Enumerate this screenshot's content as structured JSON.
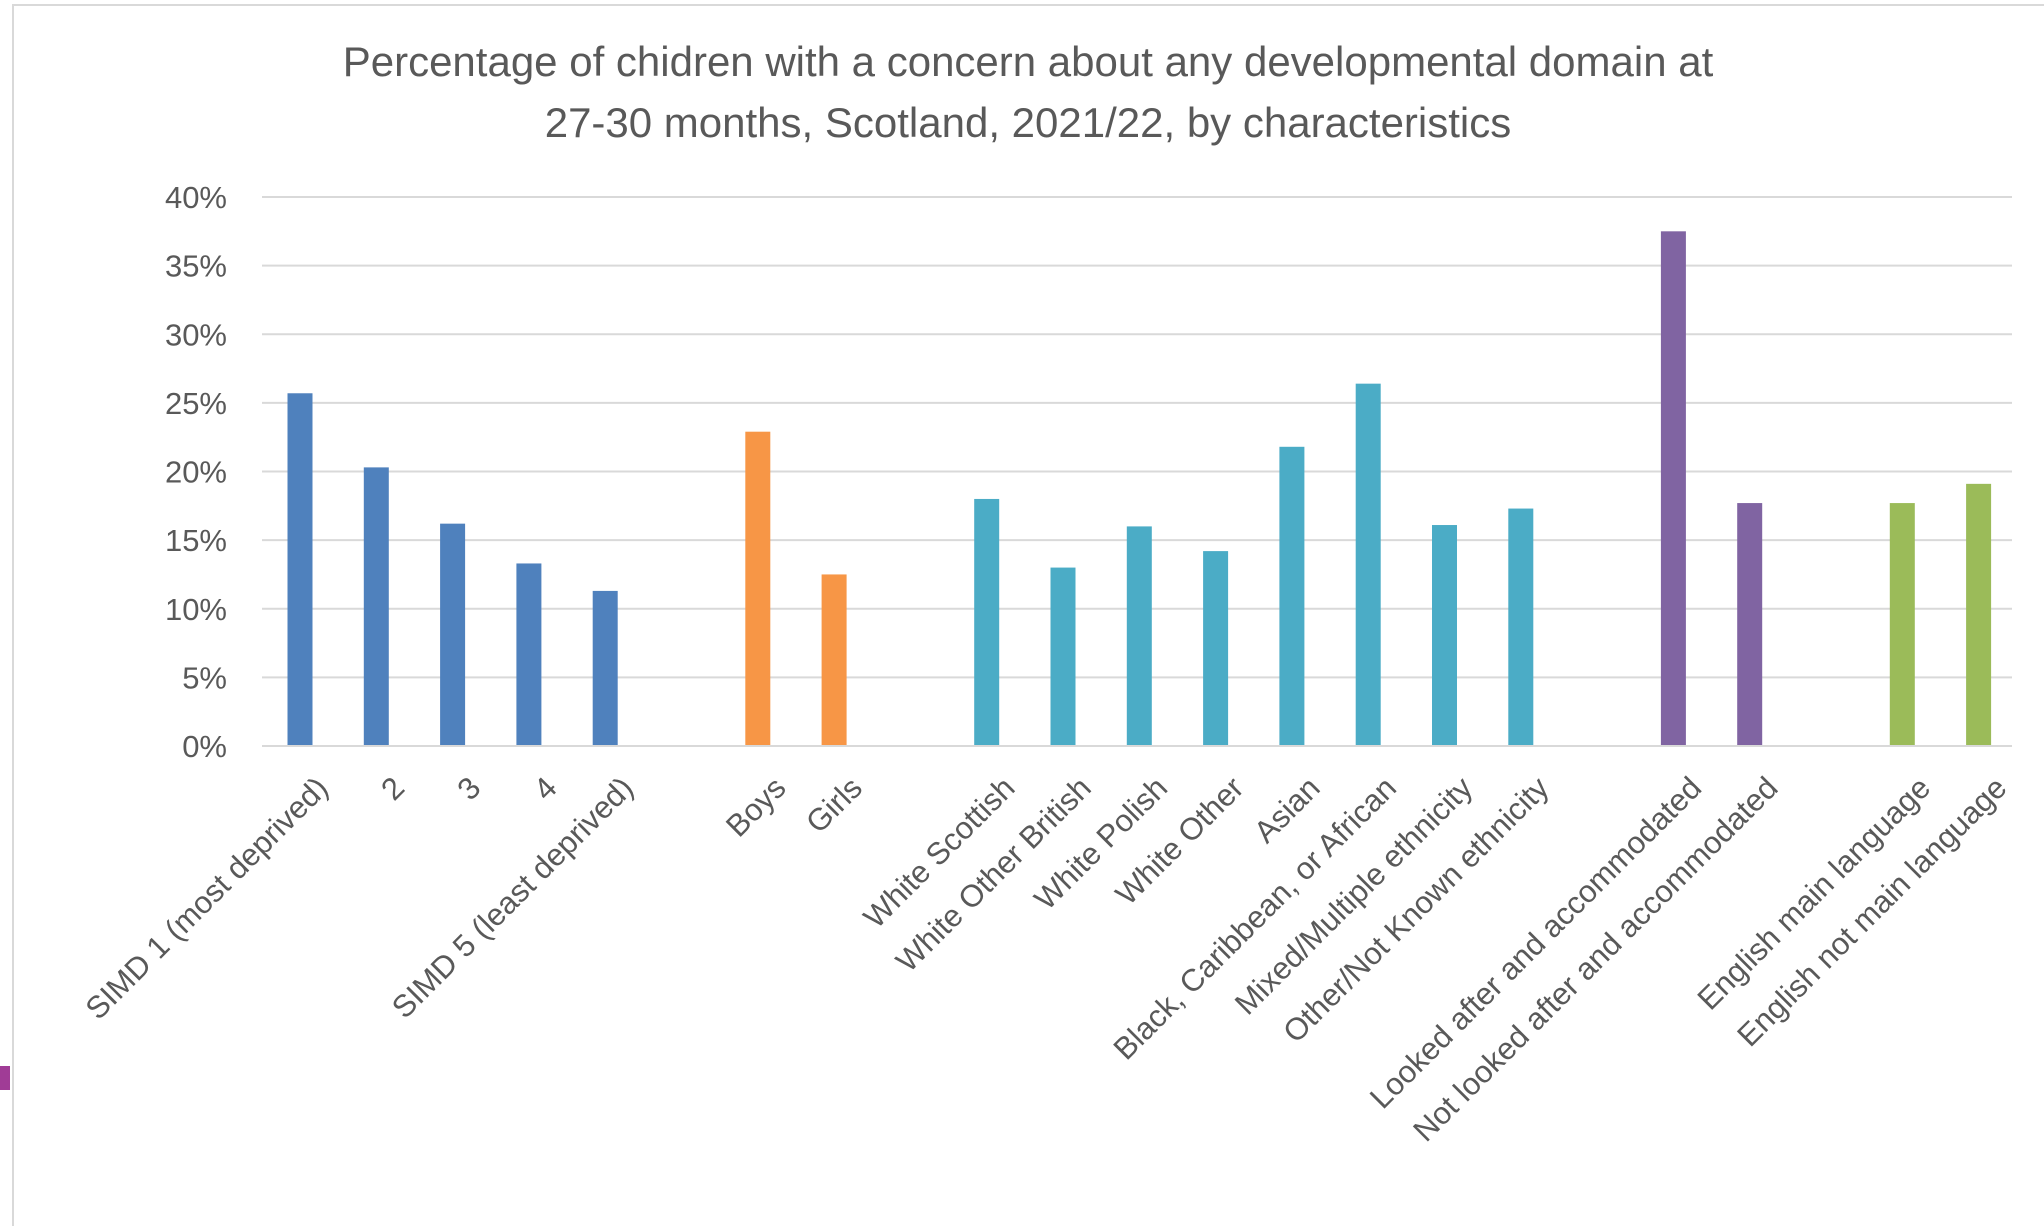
{
  "chart_data": {
    "type": "bar",
    "title": "Percentage of chidren with a concern about any developmental domain at 27-30 months, Scotland, 2021/22, by characteristics",
    "title_lines": [
      "Percentage of chidren with a concern about any developmental domain at",
      "27-30 months, Scotland, 2021/22, by characteristics"
    ],
    "xlabel": "",
    "ylabel": "",
    "ylim": [
      0,
      40
    ],
    "y_ticks": [
      "0%",
      "5%",
      "10%",
      "15%",
      "20%",
      "25%",
      "30%",
      "35%",
      "40%"
    ],
    "grid": true,
    "legend": "none",
    "groups": [
      {
        "color": "#4f81bd",
        "categories": [
          "SIMD 1 (most deprived)",
          "2",
          "3",
          "4",
          "SIMD 5 (least deprived)"
        ],
        "values": [
          25.7,
          20.3,
          16.2,
          13.3,
          11.3
        ]
      },
      {
        "color": "#f79646",
        "categories": [
          "Boys",
          "Girls"
        ],
        "values": [
          22.9,
          12.5
        ]
      },
      {
        "color": "#4bacc6",
        "categories": [
          "White Scottish",
          "White Other British",
          "White Polish",
          "White Other",
          "Asian",
          "Black, Caribbean, or African",
          "Mixed/Multiple ethnicity",
          "Other/Not Known ethnicity"
        ],
        "values": [
          18.0,
          13.0,
          16.0,
          14.2,
          21.8,
          26.4,
          16.1,
          17.3
        ]
      },
      {
        "color": "#8064a2",
        "categories": [
          "Looked after and accommodated",
          "Not looked after and accommodated"
        ],
        "values": [
          37.5,
          17.7
        ]
      },
      {
        "color": "#9bbb59",
        "categories": [
          "English main language",
          "English not main language"
        ],
        "values": [
          17.7,
          19.1
        ]
      }
    ]
  }
}
